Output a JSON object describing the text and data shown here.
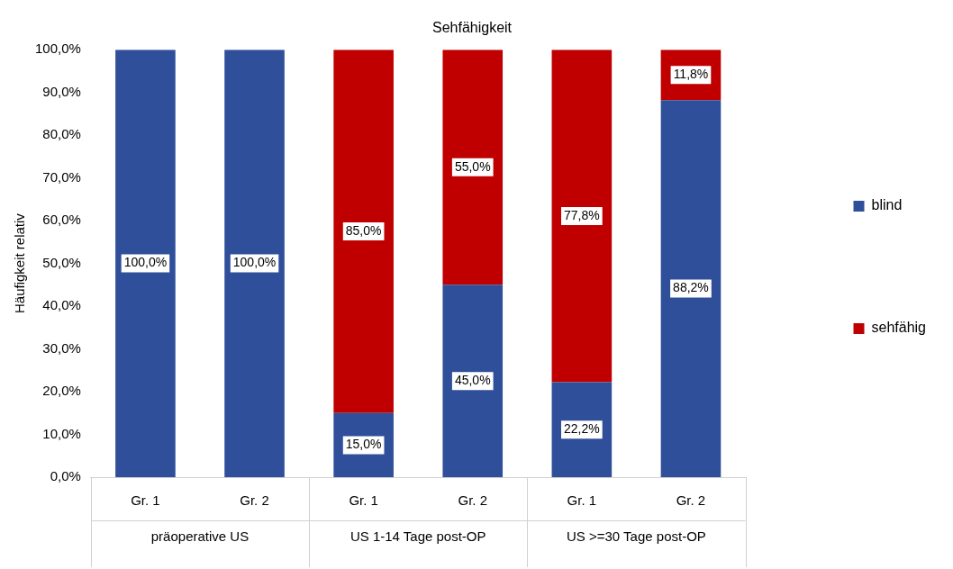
{
  "chart_data": {
    "type": "bar",
    "title": "Sehfähigkeit",
    "ylabel": "Häufigkeit relativ",
    "stacked": true,
    "legend": "right",
    "grid": false,
    "categories": [
      "Gr. 1",
      "Gr. 2",
      "Gr. 1",
      "Gr. 2",
      "Gr. 1",
      "Gr. 2"
    ],
    "annotations": [
      "präoperative US",
      "US 1-14 Tage post-OP",
      "US >=30 Tage post-OP"
    ],
    "series": [
      {
        "name": "blind",
        "color": "#2f4f9a",
        "values": [
          100,
          100,
          15,
          45,
          22.2,
          88.2
        ],
        "value_labels": [
          "100,0%",
          "100,0%",
          "15,0%",
          "45,0%",
          "22,2%",
          "88,2%"
        ]
      },
      {
        "name": "sehfähig",
        "color": "#c00000",
        "values": [
          0,
          0,
          85,
          55,
          77.8,
          11.8
        ],
        "value_labels": [
          null,
          null,
          "85,0%",
          "55,0%",
          "77,8%",
          "11,8%"
        ]
      }
    ],
    "ylim": [
      0,
      100
    ],
    "yticks": [
      {
        "value": 0,
        "label": "0,0%"
      },
      {
        "value": 10,
        "label": "10,0%"
      },
      {
        "value": 20,
        "label": "20,0%"
      },
      {
        "value": 30,
        "label": "30,0%"
      },
      {
        "value": 40,
        "label": "40,0%"
      },
      {
        "value": 50,
        "label": "50,0%"
      },
      {
        "value": 60,
        "label": "60,0%"
      },
      {
        "value": 70,
        "label": "70,0%"
      },
      {
        "value": 80,
        "label": "80,0%"
      },
      {
        "value": 90,
        "label": "90,0%"
      },
      {
        "value": 100,
        "label": "100,0%"
      }
    ]
  }
}
